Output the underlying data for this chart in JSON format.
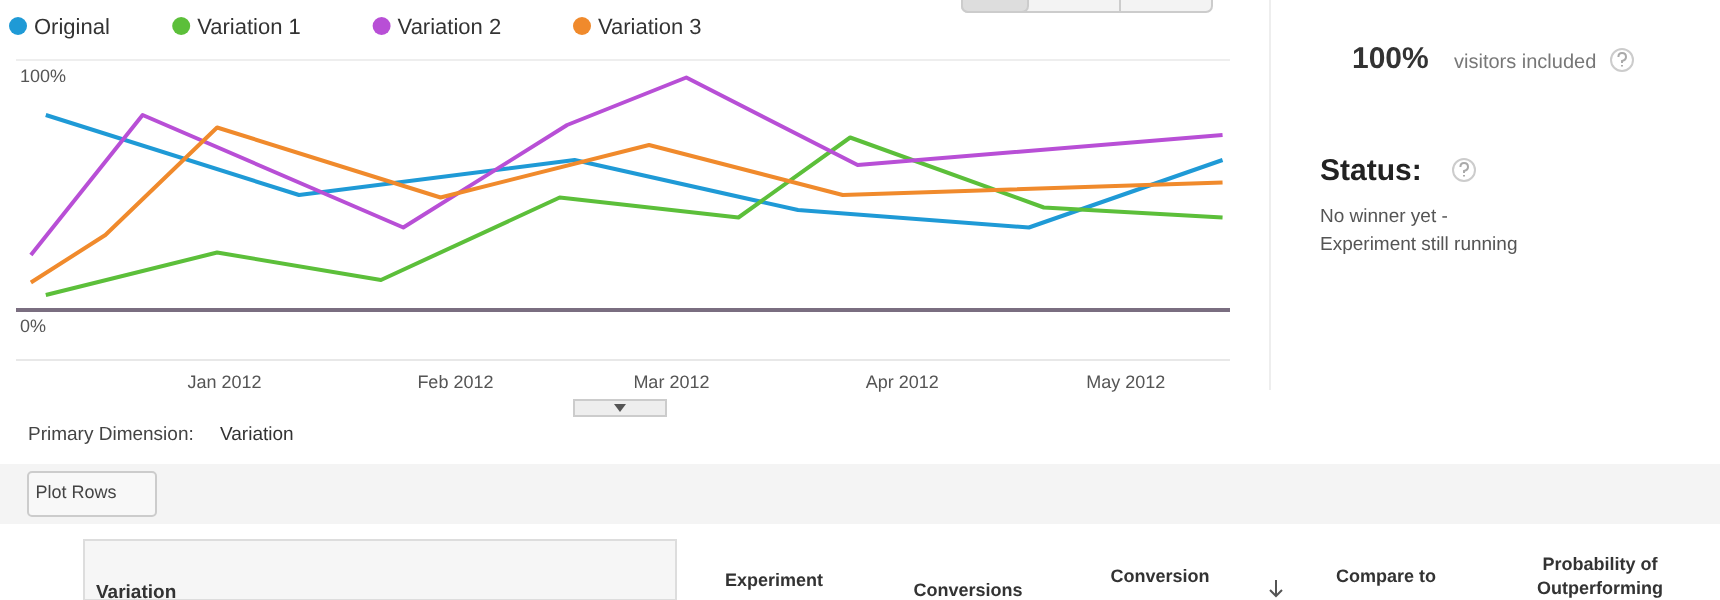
{
  "chart_data": {
    "type": "line",
    "legend": "top left",
    "grid": "y",
    "marker": "none",
    "line_style": "solid",
    "xlim": [
      "2011-12-04",
      "2012-05-15"
    ],
    "ylim": [
      0,
      100
    ],
    "yticks": [
      {
        "value": 0,
        "label": "0%"
      },
      {
        "value": 100,
        "label": "100%"
      }
    ],
    "xticks": [
      {
        "value": "2012-01-01",
        "label": "Jan 2012"
      },
      {
        "value": "2012-02-01",
        "label": "Feb 2012"
      },
      {
        "value": "2012-03-01",
        "label": "Mar 2012"
      },
      {
        "value": "2012-04-01",
        "label": "Apr 2012"
      },
      {
        "value": "2012-05-01",
        "label": "May 2012"
      }
    ],
    "series": [
      {
        "name": "Original",
        "color": "#1f9ad6",
        "x": [
          "2011-12-08",
          "2012-01-11",
          "2012-02-17",
          "2012-03-18",
          "2012-04-18",
          "2012-05-14"
        ],
        "values": [
          78,
          46,
          60,
          40,
          33,
          60
        ]
      },
      {
        "name": "Variation 1",
        "color": "#5cbf3a",
        "x": [
          "2011-12-08",
          "2011-12-31",
          "2012-01-22",
          "2012-02-15",
          "2012-03-10",
          "2012-03-25",
          "2012-04-20",
          "2012-05-14"
        ],
        "values": [
          6,
          23,
          12,
          45,
          37,
          69,
          41,
          37
        ]
      },
      {
        "name": "Variation 2",
        "color": "#b84fd6",
        "x": [
          "2011-12-06",
          "2011-12-21",
          "2012-01-25",
          "2012-02-16",
          "2012-03-03",
          "2012-03-26",
          "2012-05-14"
        ],
        "values": [
          22,
          78,
          33,
          74,
          93,
          58,
          70
        ]
      },
      {
        "name": "Variation 3",
        "color": "#f08a2c",
        "x": [
          "2011-12-06",
          "2011-12-16",
          "2011-12-31",
          "2012-01-30",
          "2012-02-27",
          "2012-03-24",
          "2012-05-14"
        ],
        "values": [
          11,
          30,
          73,
          45,
          66,
          46,
          51
        ]
      }
    ],
    "annotations": [
      "100%",
      "visitors included",
      "Status:",
      "No winner yet -",
      "Experiment still running",
      "Primary Dimension:",
      "Variation",
      "Plot Rows",
      "Variation",
      "Experiment",
      "Conversions",
      "Conversion",
      "Compare to",
      "Probability of",
      "Outperforming"
    ]
  }
}
